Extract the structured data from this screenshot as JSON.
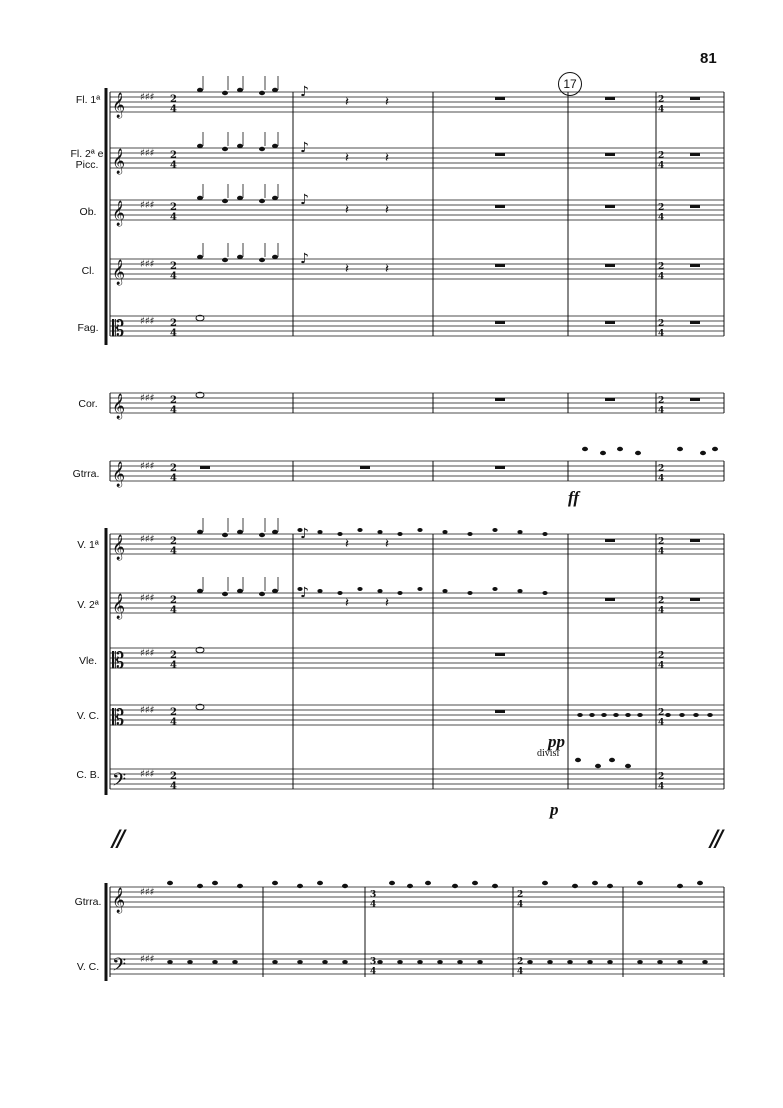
{
  "page": {
    "number": "81",
    "rehearsal_mark": "17",
    "system_separator": "//"
  },
  "system1": {
    "instruments": [
      "Fl. 1ª",
      "Fl. 2ª e Picc.",
      "Ob.",
      "Cl.",
      "Fag.",
      "Cor.",
      "Gtrra.",
      "V. 1ª",
      "V. 2ª",
      "Vle.",
      "V. C.",
      "C. B."
    ],
    "dynamics": {
      "gtrra": "ff",
      "vc": "pp",
      "cb": "p"
    },
    "annotations": {
      "vc_divisi": "divisi"
    }
  },
  "system2": {
    "instruments": [
      "Gtrra.",
      "V. C."
    ]
  }
}
